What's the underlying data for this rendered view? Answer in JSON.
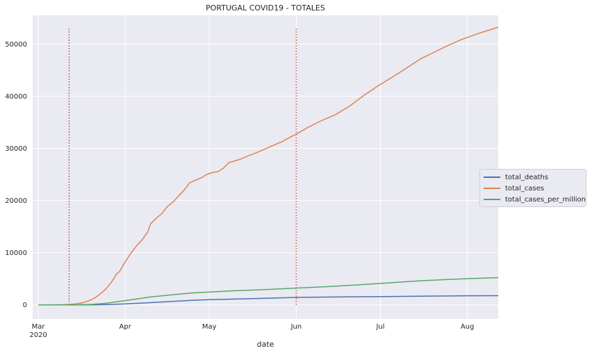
{
  "chart_data": {
    "type": "line",
    "title": "PORTUGAL COVID19 - TOTALES",
    "xlabel": "date",
    "ylabel": "",
    "x_ticks": [
      {
        "date": "2020-03-01",
        "label": "Mar",
        "sublabel": "2020"
      },
      {
        "date": "2020-04-01",
        "label": "Apr",
        "sublabel": ""
      },
      {
        "date": "2020-05-01",
        "label": "May",
        "sublabel": ""
      },
      {
        "date": "2020-06-01",
        "label": "Jun",
        "sublabel": ""
      },
      {
        "date": "2020-07-01",
        "label": "Jul",
        "sublabel": ""
      },
      {
        "date": "2020-08-01",
        "label": "Aug",
        "sublabel": ""
      }
    ],
    "y_ticks": [
      0,
      10000,
      20000,
      30000,
      40000,
      50000
    ],
    "xlim": [
      "2020-02-28",
      "2020-08-12"
    ],
    "ylim": [
      -2700,
      55500
    ],
    "grid": true,
    "legend_position": "center-right",
    "vlines": [
      {
        "date": "2020-03-12",
        "ymin": 0,
        "ymax": 53200,
        "color": "#c44e52",
        "style": "dotted"
      },
      {
        "date": "2020-06-01",
        "ymin": 0,
        "ymax": 53200,
        "color": "#c44e52",
        "style": "dotted"
      }
    ],
    "series": [
      {
        "name": "total_deaths",
        "color": "#4c72b0",
        "points": [
          [
            "2020-03-01",
            0
          ],
          [
            "2020-03-16",
            1
          ],
          [
            "2020-03-21",
            12
          ],
          [
            "2020-03-26",
            60
          ],
          [
            "2020-04-01",
            187
          ],
          [
            "2020-04-10",
            435
          ],
          [
            "2020-04-20",
            735
          ],
          [
            "2020-04-25",
            880
          ],
          [
            "2020-05-01",
            989
          ],
          [
            "2020-05-10",
            1114
          ],
          [
            "2020-05-20",
            1247
          ],
          [
            "2020-06-01",
            1424
          ],
          [
            "2020-06-15",
            1517
          ],
          [
            "2020-07-01",
            1576
          ],
          [
            "2020-07-15",
            1668
          ],
          [
            "2020-08-01",
            1738
          ],
          [
            "2020-08-12",
            1764
          ]
        ]
      },
      {
        "name": "total_cases",
        "color": "#dd8452",
        "points": [
          [
            "2020-03-01",
            0
          ],
          [
            "2020-03-05",
            5
          ],
          [
            "2020-03-10",
            41
          ],
          [
            "2020-03-14",
            169
          ],
          [
            "2020-03-17",
            448
          ],
          [
            "2020-03-19",
            785
          ],
          [
            "2020-03-21",
            1280
          ],
          [
            "2020-03-23",
            2060
          ],
          [
            "2020-03-25",
            2995
          ],
          [
            "2020-03-27",
            4268
          ],
          [
            "2020-03-29",
            5962
          ],
          [
            "2020-03-30",
            6408
          ],
          [
            "2020-04-01",
            8251
          ],
          [
            "2020-04-03",
            9886
          ],
          [
            "2020-04-05",
            11278
          ],
          [
            "2020-04-07",
            12442
          ],
          [
            "2020-04-09",
            13956
          ],
          [
            "2020-04-10",
            15472
          ],
          [
            "2020-04-12",
            16585
          ],
          [
            "2020-04-14",
            17448
          ],
          [
            "2020-04-16",
            18841
          ],
          [
            "2020-04-18",
            19685
          ],
          [
            "2020-04-20",
            20863
          ],
          [
            "2020-04-22",
            21982
          ],
          [
            "2020-04-24",
            23392
          ],
          [
            "2020-04-26",
            23864
          ],
          [
            "2020-04-28",
            24322
          ],
          [
            "2020-04-30",
            24987
          ],
          [
            "2020-05-02",
            25351
          ],
          [
            "2020-05-04",
            25524
          ],
          [
            "2020-05-06",
            26182
          ],
          [
            "2020-05-08",
            27268
          ],
          [
            "2020-05-10",
            27581
          ],
          [
            "2020-05-12",
            27913
          ],
          [
            "2020-05-15",
            28583
          ],
          [
            "2020-05-18",
            29209
          ],
          [
            "2020-05-21",
            29912
          ],
          [
            "2020-05-24",
            30623
          ],
          [
            "2020-05-27",
            31292
          ],
          [
            "2020-05-30",
            32203
          ],
          [
            "2020-06-01",
            32700
          ],
          [
            "2020-06-05",
            33969
          ],
          [
            "2020-06-10",
            35306
          ],
          [
            "2020-06-15",
            36463
          ],
          [
            "2020-06-20",
            38089
          ],
          [
            "2020-06-25",
            40104
          ],
          [
            "2020-06-30",
            41912
          ],
          [
            "2020-07-05",
            43569
          ],
          [
            "2020-07-10",
            45277
          ],
          [
            "2020-07-15",
            47051
          ],
          [
            "2020-07-20",
            48390
          ],
          [
            "2020-07-25",
            49692
          ],
          [
            "2020-07-30",
            50868
          ],
          [
            "2020-08-04",
            51848
          ],
          [
            "2020-08-08",
            52537
          ],
          [
            "2020-08-12",
            53223
          ]
        ]
      },
      {
        "name": "total_cases_per_million",
        "color": "#55a868",
        "points": [
          [
            "2020-03-01",
            0
          ],
          [
            "2020-03-10",
            4
          ],
          [
            "2020-03-15",
            24
          ],
          [
            "2020-03-20",
            98
          ],
          [
            "2020-03-25",
            294
          ],
          [
            "2020-04-01",
            809
          ],
          [
            "2020-04-10",
            1517
          ],
          [
            "2020-04-20",
            2046
          ],
          [
            "2020-04-25",
            2294
          ],
          [
            "2020-05-01",
            2466
          ],
          [
            "2020-05-10",
            2705
          ],
          [
            "2020-05-20",
            2914
          ],
          [
            "2020-06-01",
            3207
          ],
          [
            "2020-06-15",
            3576
          ],
          [
            "2020-07-01",
            4110
          ],
          [
            "2020-07-15",
            4614
          ],
          [
            "2020-08-01",
            5032
          ],
          [
            "2020-08-12",
            5220
          ]
        ]
      }
    ]
  }
}
